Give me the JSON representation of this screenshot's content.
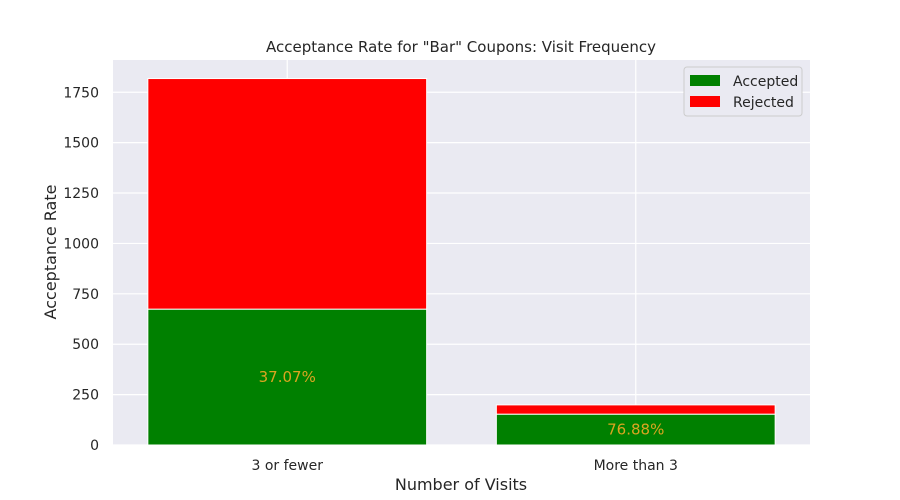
{
  "chart_data": {
    "type": "bar",
    "stacked": true,
    "title": "Acceptance Rate for \"Bar\" Coupons: Visit Frequency",
    "xlabel": "Number of Visits",
    "ylabel": "Acceptance Rate",
    "categories": [
      "3 or fewer",
      "More than 3"
    ],
    "series": [
      {
        "name": "Accepted",
        "values": [
          674,
          153
        ],
        "color": "#008000"
      },
      {
        "name": "Rejected",
        "values": [
          1144,
          46
        ],
        "color": "#ff0000"
      }
    ],
    "data_labels": [
      "37.07%",
      "76.88%"
    ],
    "data_label_color": "#daa520",
    "ylim": [
      0,
      1910
    ],
    "yticks": [
      0,
      250,
      500,
      750,
      1000,
      1250,
      1500,
      1750
    ],
    "grid": true,
    "background": "#eaeaf2",
    "legend_position": "top-right"
  }
}
